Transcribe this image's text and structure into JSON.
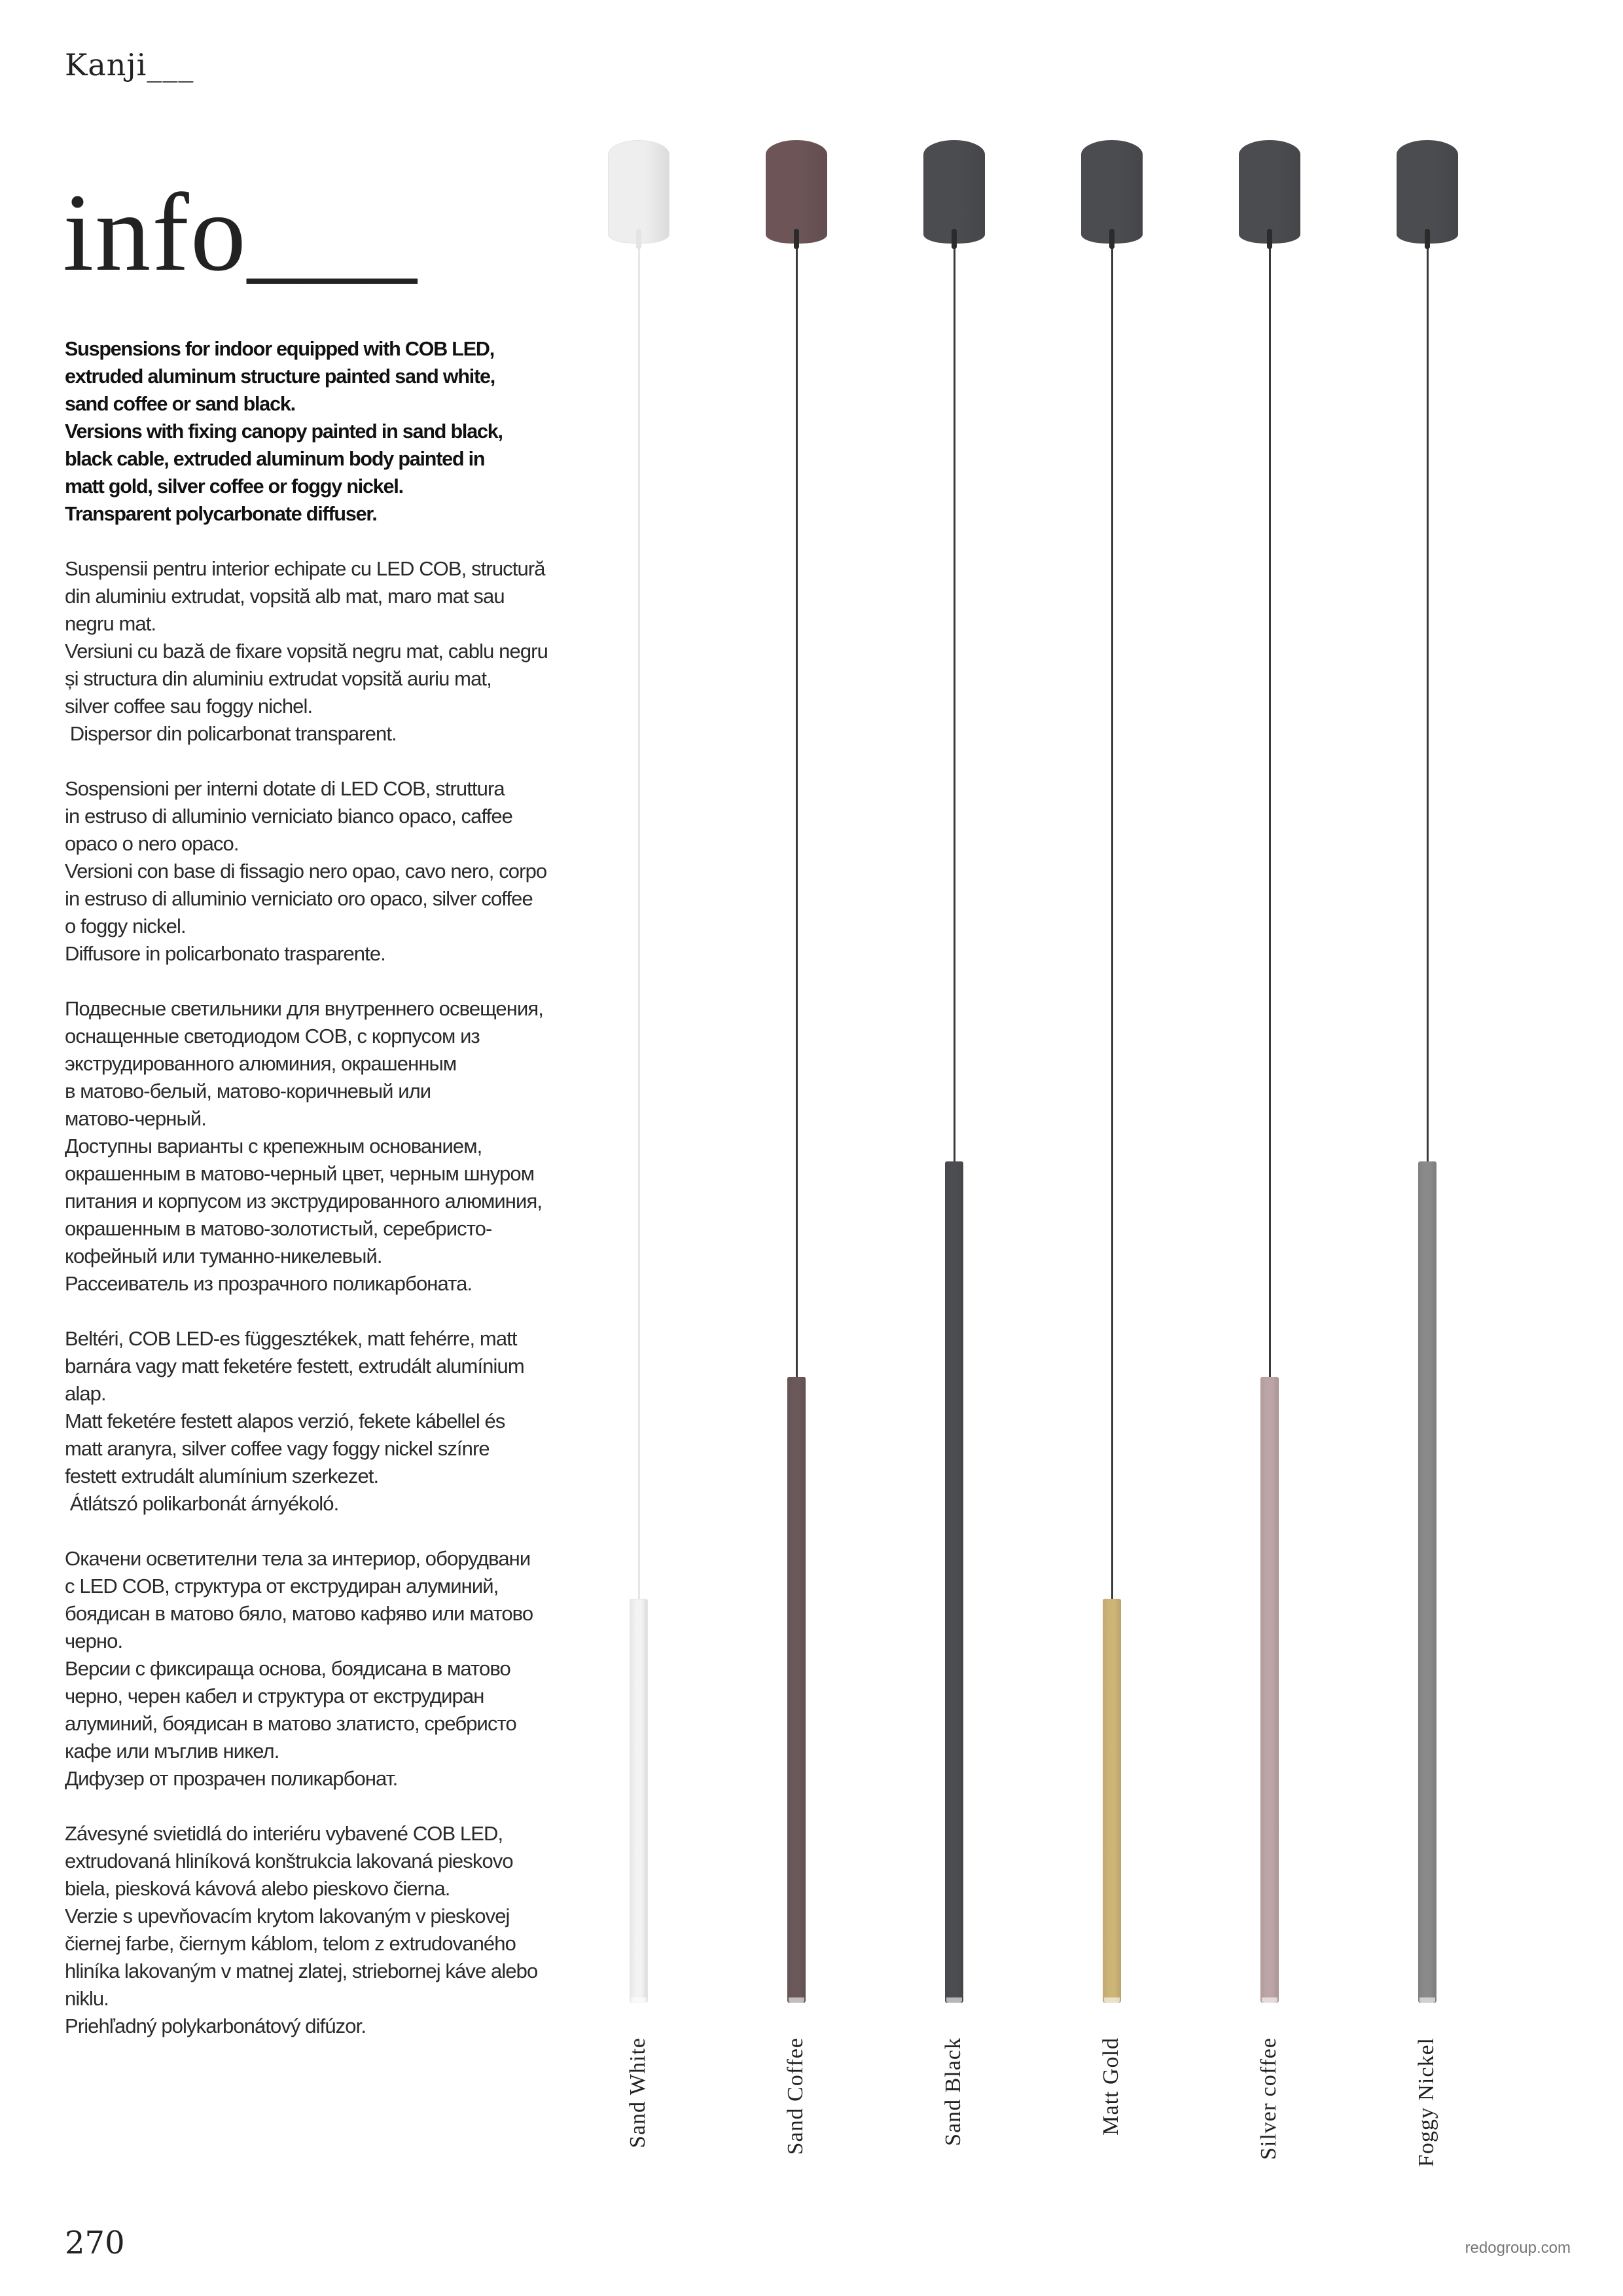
{
  "header": {
    "title": "Kanji___"
  },
  "section_title": "info___",
  "page_number": "270",
  "website": "redogroup.com",
  "paragraphs": [
    "Suspensions for indoor equipped with COB LED,\nextruded aluminum structure painted sand white,\nsand coffee or sand black.\nVersions with fixing canopy painted in sand black,\nblack cable, extruded aluminum body painted in\nmatt gold, silver coffee or foggy nickel.\nTransparent polycarbonate diffuser.",
    "Suspensii pentru interior echipate cu LED COB, structură\ndin aluminiu extrudat, vopsită alb mat, maro mat sau\nnegru mat.\nVersiuni cu bază de fixare vopsită negru mat, cablu negru\nși structura din aluminiu extrudat vopsită auriu mat,\nsilver coffee sau foggy nichel.\n Dispersor din policarbonat transparent.",
    "Sospensioni per interni dotate di LED COB, struttura\nin estruso di alluminio verniciato bianco opaco, caffee\nopaco o nero opaco.\nVersioni con base di fissagio nero opao, cavo nero, corpo\nin estruso di alluminio verniciato oro opaco, silver coffee\no foggy nickel.\nDiffusore in policarbonato trasparente.",
    "Подвесные светильники для внутреннего освещения,\nоснащенные светодиодом COB, с корпусом из\nэкструдированного алюминия, окрашенным\nв матово-белый, матово-коричневый или\nматово-черный.\nДоступны варианты с крепежным основанием,\nокрашенным в матово-черный цвет, черным шнуром\nпитания и корпусом из экструдированного алюминия,\nокрашенным в матово-золотистый, серебристо-\nкофейный или туманно-никелевый.\nРассеиватель из прозрачного поликарбоната.",
    "Beltéri, COB LED-es függesztékek, matt fehérre, matt\nbarnára vagy matt feketére festett, extrudált alumínium\nalap.\nMatt feketére festett alapos verzió, fekete kábellel és\nmatt aranyra, silver coffee vagy foggy nickel színre\nfestett extrudált alumínium szerkezet.\n Átlátszó polikarbonát árnyékoló.",
    "Окачени осветителни тела за интериор, оборудвани\nс LED COB, структура от екструдиран алуминий,\nбоядисан в матово бяло, матово кафяво или матово\nчерно.\nВерсии с фиксираща основа, боядисана в матово\nчерно, черен кабел и структура от екструдиран\nалуминий, боядисан в матово златисто, сребристо\nкафе или мъглив никел.\nДифузер от прозрачен поликарбонат.",
    "Závesyné svietidlá do interiéru vybavené COB LED,\nextrudovaná hliníková konštrukcia lakovaná pieskovo\nbiela, piesková kávová alebo pieskovo čierna.\nVerzie s upevňovacím krytom lakovaným v pieskovej\nčiernej farbe, čiernym káblom, telom z extrudovaného\nhliníka lakovaným v matnej zlatej, striebornej káve alebo\nniklu.\nPriehľadný polykarbonátový difúzor."
  ],
  "variants": [
    {
      "label": "Sand White",
      "canopy_color": "#eeeeee",
      "cable_color": "#e6e6e6",
      "body_color": "#f3f3f3"
    },
    {
      "label": "Sand Coffee",
      "canopy_color": "#6c5457",
      "cable_color": "#3a3a3a",
      "body_color": "#6b585b"
    },
    {
      "label": "Sand Black",
      "canopy_color": "#4b4c4f",
      "cable_color": "#3a3a3a",
      "body_color": "#4c4d50"
    },
    {
      "label": "Matt Gold",
      "canopy_color": "#4b4c4f",
      "cable_color": "#3a3a3a",
      "body_color": "#cdb578"
    },
    {
      "label": "Silver coffee",
      "canopy_color": "#4b4c4f",
      "cable_color": "#3a3a3a",
      "body_color": "#bca6a5"
    },
    {
      "label": "Foggy Nickel",
      "canopy_color": "#4b4c4f",
      "cable_color": "#3a3a3a",
      "body_color": "#8a8a8b"
    }
  ]
}
